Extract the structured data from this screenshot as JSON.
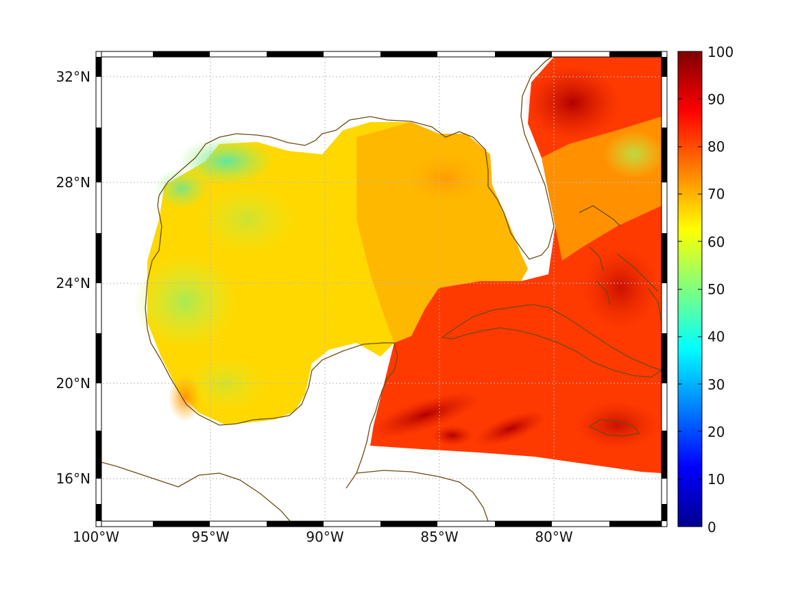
{
  "map": {
    "lat_ticks": [
      "32°N",
      "28°N",
      "24°N",
      "20°N",
      "16°N"
    ],
    "lon_ticks": [
      "100°W",
      "95°W",
      "90°W",
      "85°W",
      "80°W"
    ],
    "colorbar": {
      "ticks": [
        "100",
        "90",
        "80",
        "70",
        "60",
        "50",
        "40",
        "30",
        "20",
        "10",
        "0"
      ],
      "colormap": "jet",
      "min": 0,
      "max": 100
    },
    "colors": {
      "coastline": "#6b4a12",
      "gridline": "#bbbbbb",
      "frame_dark": "#000000",
      "frame_light": "#ffffff"
    }
  }
}
